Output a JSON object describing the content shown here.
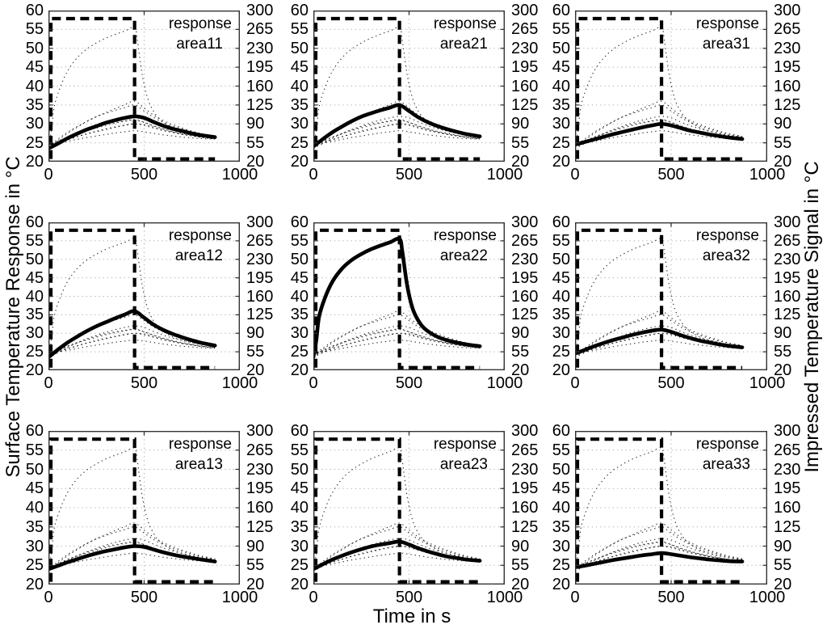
{
  "chart_data": {
    "type": "line",
    "layout_hint": {
      "rows": 3,
      "cols": 3,
      "grid": "dotted",
      "legend_position": "top-right-inside"
    },
    "x": {
      "label": "Time in s",
      "range": [
        0,
        1000
      ],
      "ticks": [
        0,
        500,
        1000
      ]
    },
    "y_left": {
      "label": "Surface Temperature Response in °C",
      "range": [
        20,
        60
      ],
      "ticks": [
        20,
        25,
        30,
        35,
        40,
        45,
        50,
        55,
        60
      ]
    },
    "y_right": {
      "label": "Impressed Temperature Signal in °C",
      "range": [
        20,
        300
      ],
      "ticks": [
        20,
        55,
        90,
        125,
        160,
        195,
        230,
        265,
        300
      ]
    },
    "legend_line1": "response",
    "colors": {
      "curves": "#000000",
      "grid_dots": "#a8a8a8",
      "axis_box": "#333333"
    },
    "impressed_signal": {
      "style": "thick-dashed",
      "axis": "right",
      "high_value": 285,
      "low_value": 25,
      "t_on": 0,
      "t_off": 450,
      "t_end": 870
    },
    "t": [
      0,
      50,
      100,
      150,
      200,
      250,
      300,
      350,
      400,
      450,
      500,
      550,
      600,
      650,
      700,
      750,
      800,
      870
    ],
    "subplots": [
      {
        "label": "area11",
        "values": [
          23.5,
          24.8,
          26.2,
          27.4,
          28.5,
          29.4,
          30.3,
          31.0,
          31.6,
          32.0,
          31.6,
          30.5,
          29.5,
          28.7,
          28.1,
          27.5,
          27.0,
          26.5
        ]
      },
      {
        "label": "area21",
        "values": [
          24.0,
          26.0,
          27.8,
          29.3,
          30.7,
          31.9,
          32.8,
          33.6,
          34.3,
          35.0,
          33.4,
          31.7,
          30.4,
          29.4,
          28.6,
          27.9,
          27.3,
          26.7
        ]
      },
      {
        "label": "area31",
        "values": [
          24.5,
          25.2,
          25.9,
          26.6,
          27.3,
          27.9,
          28.5,
          29.1,
          29.6,
          30.0,
          29.6,
          28.9,
          28.2,
          27.7,
          27.2,
          26.8,
          26.4,
          26.0
        ]
      },
      {
        "label": "area12",
        "values": [
          23.5,
          25.6,
          27.5,
          29.1,
          30.6,
          31.9,
          33.0,
          34.1,
          35.1,
          36.0,
          34.2,
          32.3,
          30.9,
          29.8,
          28.9,
          28.1,
          27.4,
          26.7
        ]
      },
      {
        "label": "area22",
        "t": [
          0,
          15,
          30,
          60,
          100,
          150,
          200,
          250,
          300,
          350,
          400,
          450,
          465,
          490,
          520,
          560,
          600,
          650,
          700,
          750,
          800,
          870
        ],
        "values": [
          23.5,
          28.0,
          34.5,
          39.5,
          44.0,
          47.5,
          49.8,
          51.4,
          52.7,
          53.7,
          54.6,
          55.5,
          52.0,
          43.0,
          36.5,
          32.5,
          30.5,
          29.0,
          28.1,
          27.5,
          27.0,
          26.5
        ]
      },
      {
        "label": "area32",
        "values": [
          24.5,
          25.5,
          26.5,
          27.4,
          28.2,
          28.9,
          29.6,
          30.2,
          30.7,
          31.0,
          30.4,
          29.5,
          28.7,
          28.0,
          27.5,
          27.0,
          26.6,
          26.2
        ]
      },
      {
        "label": "area13",
        "values": [
          24.0,
          24.9,
          25.8,
          26.6,
          27.4,
          28.1,
          28.7,
          29.2,
          29.7,
          30.0,
          29.8,
          29.1,
          28.4,
          27.8,
          27.3,
          26.9,
          26.5,
          26.0
        ]
      },
      {
        "label": "area23",
        "values": [
          24.0,
          25.3,
          26.5,
          27.5,
          28.4,
          29.2,
          29.9,
          30.4,
          30.8,
          31.2,
          30.4,
          29.4,
          28.6,
          27.9,
          27.3,
          26.9,
          26.5,
          26.2
        ]
      },
      {
        "label": "area33",
        "values": [
          24.5,
          24.9,
          25.4,
          25.9,
          26.4,
          26.8,
          27.2,
          27.6,
          27.9,
          28.2,
          27.9,
          27.5,
          27.1,
          26.8,
          26.5,
          26.3,
          26.1,
          26.0
        ]
      }
    ]
  }
}
